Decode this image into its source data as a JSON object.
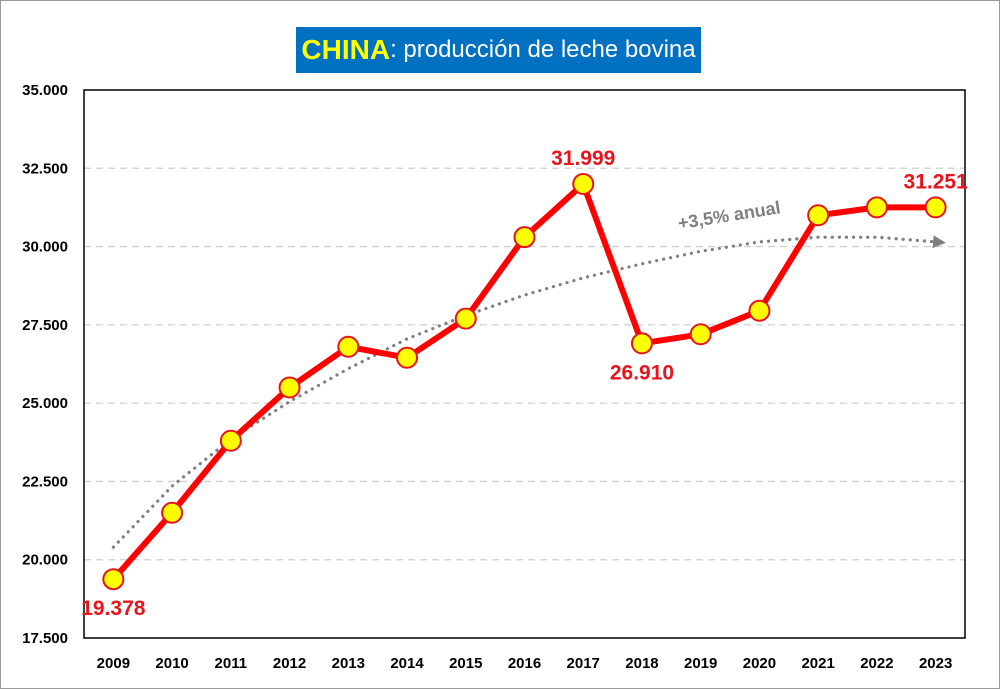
{
  "title": {
    "country": "CHINA",
    "rest": ": producción de leche bovina"
  },
  "chart_data": {
    "type": "line",
    "title": "CHINA: producción de leche bovina",
    "xlabel": "",
    "ylabel": "",
    "categories": [
      "2009",
      "2010",
      "2011",
      "2012",
      "2013",
      "2014",
      "2015",
      "2016",
      "2017",
      "2018",
      "2019",
      "2020",
      "2021",
      "2022",
      "2023"
    ],
    "series": [
      {
        "values": [
          19378,
          21500,
          23800,
          25500,
          26800,
          26450,
          27700,
          30300,
          31999,
          26910,
          27200,
          27950,
          31000,
          31250,
          31251
        ],
        "color": "#ff0000",
        "marker_fill": "#ffff00",
        "marker_stroke": "#e8141b"
      }
    ],
    "ylim": [
      17500,
      35000
    ],
    "yticks": [
      "17.500",
      "20.000",
      "22.500",
      "25.000",
      "27.500",
      "30.000",
      "32.500",
      "35.000"
    ],
    "grid": "horizontal dashed",
    "data_labels": [
      {
        "index": 0,
        "text": "19.378",
        "placement": "below"
      },
      {
        "index": 8,
        "text": "31.999",
        "placement": "above"
      },
      {
        "index": 9,
        "text": "26.910",
        "placement": "below"
      },
      {
        "index": 14,
        "text": "31.251",
        "placement": "above"
      }
    ],
    "trend": {
      "label": "+3,5% anual",
      "type": "dotted polynomial",
      "color": "#7f7f7f",
      "values": [
        20400,
        22350,
        23850,
        25050,
        26100,
        27050,
        27800,
        28450,
        29000,
        29450,
        29850,
        30150,
        30300,
        30300,
        30150
      ]
    }
  }
}
